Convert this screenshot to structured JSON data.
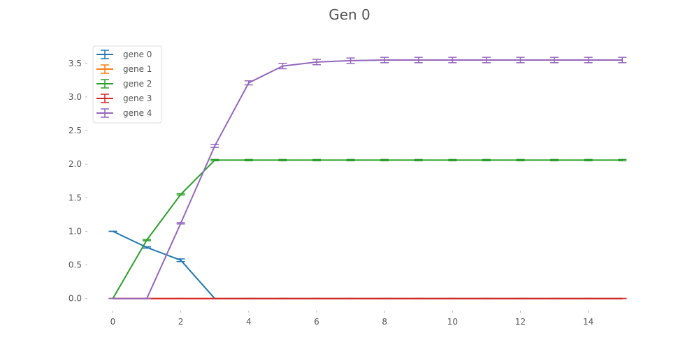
{
  "chart_data": {
    "type": "line",
    "title": "Gen 0",
    "xlabel": "",
    "ylabel": "",
    "xlim": [
      -0.75,
      15.2
    ],
    "ylim": [
      -0.18,
      3.82
    ],
    "xticks": [
      0,
      2,
      4,
      6,
      8,
      10,
      12,
      14
    ],
    "yticks": [
      0.0,
      0.5,
      1.0,
      1.5,
      2.0,
      2.5,
      3.0,
      3.5
    ],
    "xtick_labels": [
      "0",
      "2",
      "4",
      "6",
      "8",
      "10",
      "12",
      "14"
    ],
    "ytick_labels": [
      "0.0",
      "0.5",
      "1.0",
      "1.5",
      "2.0",
      "2.5",
      "3.0",
      "3.5"
    ],
    "grid": false,
    "legend_position": "top-left",
    "x": [
      0,
      1,
      2,
      3,
      4,
      5,
      6,
      7,
      8,
      9,
      10,
      11,
      12,
      13,
      14,
      15
    ],
    "series": [
      {
        "name": "gene 0",
        "color": "#1f77b4",
        "values": [
          1.0,
          0.76,
          0.57,
          0.0,
          0.0,
          0.0,
          0.0,
          0.0,
          0.0,
          0.0,
          0.0,
          0.0,
          0.0,
          0.0,
          0.0,
          0.0
        ],
        "errors": [
          0.0,
          0.01,
          0.02,
          0.0,
          0.0,
          0.0,
          0.0,
          0.0,
          0.0,
          0.0,
          0.0,
          0.0,
          0.0,
          0.0,
          0.0,
          0.0
        ]
      },
      {
        "name": "gene 1",
        "color": "#ff7f0e",
        "values": [
          0.0,
          0.0,
          0.0,
          0.0,
          0.0,
          0.0,
          0.0,
          0.0,
          0.0,
          0.0,
          0.0,
          0.0,
          0.0,
          0.0,
          0.0,
          0.0
        ],
        "errors": [
          0.0,
          0.0,
          0.0,
          0.0,
          0.0,
          0.0,
          0.0,
          0.0,
          0.0,
          0.0,
          0.0,
          0.0,
          0.0,
          0.0,
          0.0,
          0.0
        ]
      },
      {
        "name": "gene 2",
        "color": "#2ca02c",
        "values": [
          0.0,
          0.87,
          1.55,
          2.06,
          2.06,
          2.06,
          2.06,
          2.06,
          2.06,
          2.06,
          2.06,
          2.06,
          2.06,
          2.06,
          2.06,
          2.06
        ],
        "errors": [
          0.0,
          0.01,
          0.01,
          0.01,
          0.01,
          0.01,
          0.01,
          0.01,
          0.01,
          0.01,
          0.01,
          0.01,
          0.01,
          0.01,
          0.01,
          0.01
        ]
      },
      {
        "name": "gene 3",
        "color": "#d62728",
        "values": [
          0.0,
          0.0,
          0.0,
          0.0,
          0.0,
          0.0,
          0.0,
          0.0,
          0.0,
          0.0,
          0.0,
          0.0,
          0.0,
          0.0,
          0.0,
          0.0
        ],
        "errors": [
          0.0,
          0.0,
          0.0,
          0.0,
          0.0,
          0.0,
          0.0,
          0.0,
          0.0,
          0.0,
          0.0,
          0.0,
          0.0,
          0.0,
          0.0,
          0.0
        ]
      },
      {
        "name": "gene 4",
        "color": "#9467bd",
        "values": [
          0.0,
          0.0,
          1.12,
          2.27,
          3.21,
          3.46,
          3.52,
          3.54,
          3.55,
          3.55,
          3.55,
          3.55,
          3.55,
          3.55,
          3.55,
          3.55
        ],
        "errors": [
          0.0,
          0.0,
          0.01,
          0.02,
          0.03,
          0.04,
          0.04,
          0.04,
          0.04,
          0.04,
          0.04,
          0.04,
          0.04,
          0.04,
          0.04,
          0.04
        ]
      }
    ]
  }
}
